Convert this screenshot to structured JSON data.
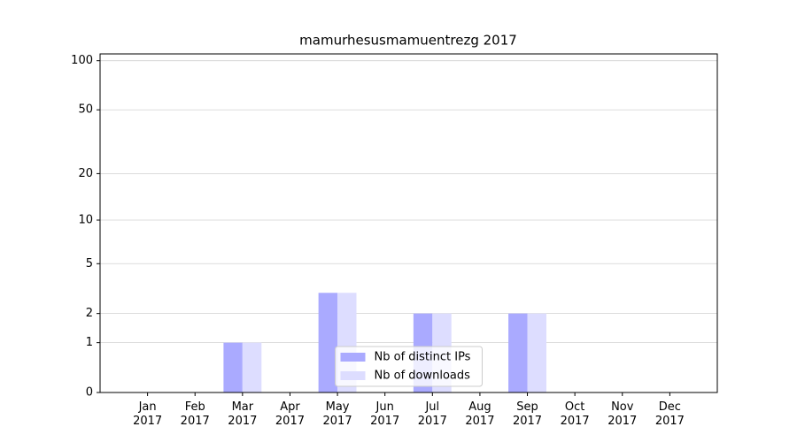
{
  "chart_data": {
    "type": "bar",
    "title": "mamurhesusmamuentrezg 2017",
    "categories": [
      "Jan\n2017",
      "Feb\n2017",
      "Mar\n2017",
      "Apr\n2017",
      "May\n2017",
      "Jun\n2017",
      "Jul\n2017",
      "Aug\n2017",
      "Sep\n2017",
      "Oct\n2017",
      "Nov\n2017",
      "Dec\n2017"
    ],
    "series": [
      {
        "name": "Nb of distinct IPs",
        "color": "#aaaaff",
        "values": [
          0,
          0,
          1,
          0,
          3,
          0,
          2,
          0,
          2,
          0,
          0,
          0
        ]
      },
      {
        "name": "Nb of downloads",
        "color": "#ddddff",
        "values": [
          0,
          0,
          1,
          0,
          3,
          0,
          2,
          0,
          2,
          0,
          0,
          0
        ]
      }
    ],
    "yscale": "symlog",
    "ylim": [
      0,
      110
    ],
    "yticks": [
      0,
      1,
      2,
      5,
      10,
      20,
      50,
      100
    ],
    "grid": true,
    "legend": "lower center"
  }
}
